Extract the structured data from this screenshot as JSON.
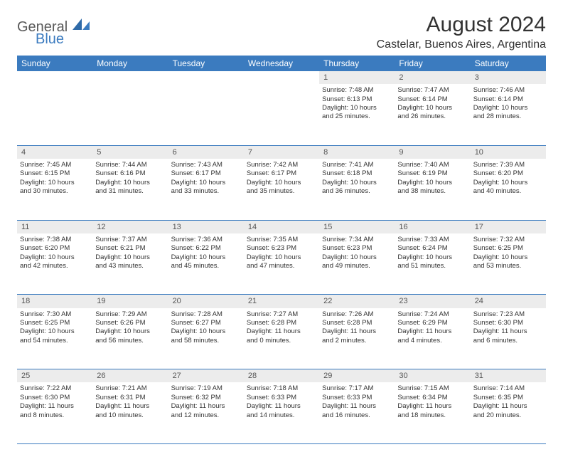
{
  "logo": {
    "general": "General",
    "blue": "Blue"
  },
  "title": "August 2024",
  "location": "Castelar, Buenos Aires, Argentina",
  "colors": {
    "brand": "#3b7bbf",
    "daynum_bg": "#ececec",
    "text": "#333333"
  },
  "weekdays": [
    "Sunday",
    "Monday",
    "Tuesday",
    "Wednesday",
    "Thursday",
    "Friday",
    "Saturday"
  ],
  "weeks": [
    {
      "nums": [
        "",
        "",
        "",
        "",
        "1",
        "2",
        "3"
      ],
      "cells": [
        null,
        null,
        null,
        null,
        {
          "sunrise": "Sunrise: 7:48 AM",
          "sunset": "Sunset: 6:13 PM",
          "day1": "Daylight: 10 hours",
          "day2": "and 25 minutes."
        },
        {
          "sunrise": "Sunrise: 7:47 AM",
          "sunset": "Sunset: 6:14 PM",
          "day1": "Daylight: 10 hours",
          "day2": "and 26 minutes."
        },
        {
          "sunrise": "Sunrise: 7:46 AM",
          "sunset": "Sunset: 6:14 PM",
          "day1": "Daylight: 10 hours",
          "day2": "and 28 minutes."
        }
      ]
    },
    {
      "nums": [
        "4",
        "5",
        "6",
        "7",
        "8",
        "9",
        "10"
      ],
      "cells": [
        {
          "sunrise": "Sunrise: 7:45 AM",
          "sunset": "Sunset: 6:15 PM",
          "day1": "Daylight: 10 hours",
          "day2": "and 30 minutes."
        },
        {
          "sunrise": "Sunrise: 7:44 AM",
          "sunset": "Sunset: 6:16 PM",
          "day1": "Daylight: 10 hours",
          "day2": "and 31 minutes."
        },
        {
          "sunrise": "Sunrise: 7:43 AM",
          "sunset": "Sunset: 6:17 PM",
          "day1": "Daylight: 10 hours",
          "day2": "and 33 minutes."
        },
        {
          "sunrise": "Sunrise: 7:42 AM",
          "sunset": "Sunset: 6:17 PM",
          "day1": "Daylight: 10 hours",
          "day2": "and 35 minutes."
        },
        {
          "sunrise": "Sunrise: 7:41 AM",
          "sunset": "Sunset: 6:18 PM",
          "day1": "Daylight: 10 hours",
          "day2": "and 36 minutes."
        },
        {
          "sunrise": "Sunrise: 7:40 AM",
          "sunset": "Sunset: 6:19 PM",
          "day1": "Daylight: 10 hours",
          "day2": "and 38 minutes."
        },
        {
          "sunrise": "Sunrise: 7:39 AM",
          "sunset": "Sunset: 6:20 PM",
          "day1": "Daylight: 10 hours",
          "day2": "and 40 minutes."
        }
      ]
    },
    {
      "nums": [
        "11",
        "12",
        "13",
        "14",
        "15",
        "16",
        "17"
      ],
      "cells": [
        {
          "sunrise": "Sunrise: 7:38 AM",
          "sunset": "Sunset: 6:20 PM",
          "day1": "Daylight: 10 hours",
          "day2": "and 42 minutes."
        },
        {
          "sunrise": "Sunrise: 7:37 AM",
          "sunset": "Sunset: 6:21 PM",
          "day1": "Daylight: 10 hours",
          "day2": "and 43 minutes."
        },
        {
          "sunrise": "Sunrise: 7:36 AM",
          "sunset": "Sunset: 6:22 PM",
          "day1": "Daylight: 10 hours",
          "day2": "and 45 minutes."
        },
        {
          "sunrise": "Sunrise: 7:35 AM",
          "sunset": "Sunset: 6:23 PM",
          "day1": "Daylight: 10 hours",
          "day2": "and 47 minutes."
        },
        {
          "sunrise": "Sunrise: 7:34 AM",
          "sunset": "Sunset: 6:23 PM",
          "day1": "Daylight: 10 hours",
          "day2": "and 49 minutes."
        },
        {
          "sunrise": "Sunrise: 7:33 AM",
          "sunset": "Sunset: 6:24 PM",
          "day1": "Daylight: 10 hours",
          "day2": "and 51 minutes."
        },
        {
          "sunrise": "Sunrise: 7:32 AM",
          "sunset": "Sunset: 6:25 PM",
          "day1": "Daylight: 10 hours",
          "day2": "and 53 minutes."
        }
      ]
    },
    {
      "nums": [
        "18",
        "19",
        "20",
        "21",
        "22",
        "23",
        "24"
      ],
      "cells": [
        {
          "sunrise": "Sunrise: 7:30 AM",
          "sunset": "Sunset: 6:25 PM",
          "day1": "Daylight: 10 hours",
          "day2": "and 54 minutes."
        },
        {
          "sunrise": "Sunrise: 7:29 AM",
          "sunset": "Sunset: 6:26 PM",
          "day1": "Daylight: 10 hours",
          "day2": "and 56 minutes."
        },
        {
          "sunrise": "Sunrise: 7:28 AM",
          "sunset": "Sunset: 6:27 PM",
          "day1": "Daylight: 10 hours",
          "day2": "and 58 minutes."
        },
        {
          "sunrise": "Sunrise: 7:27 AM",
          "sunset": "Sunset: 6:28 PM",
          "day1": "Daylight: 11 hours",
          "day2": "and 0 minutes."
        },
        {
          "sunrise": "Sunrise: 7:26 AM",
          "sunset": "Sunset: 6:28 PM",
          "day1": "Daylight: 11 hours",
          "day2": "and 2 minutes."
        },
        {
          "sunrise": "Sunrise: 7:24 AM",
          "sunset": "Sunset: 6:29 PM",
          "day1": "Daylight: 11 hours",
          "day2": "and 4 minutes."
        },
        {
          "sunrise": "Sunrise: 7:23 AM",
          "sunset": "Sunset: 6:30 PM",
          "day1": "Daylight: 11 hours",
          "day2": "and 6 minutes."
        }
      ]
    },
    {
      "nums": [
        "25",
        "26",
        "27",
        "28",
        "29",
        "30",
        "31"
      ],
      "cells": [
        {
          "sunrise": "Sunrise: 7:22 AM",
          "sunset": "Sunset: 6:30 PM",
          "day1": "Daylight: 11 hours",
          "day2": "and 8 minutes."
        },
        {
          "sunrise": "Sunrise: 7:21 AM",
          "sunset": "Sunset: 6:31 PM",
          "day1": "Daylight: 11 hours",
          "day2": "and 10 minutes."
        },
        {
          "sunrise": "Sunrise: 7:19 AM",
          "sunset": "Sunset: 6:32 PM",
          "day1": "Daylight: 11 hours",
          "day2": "and 12 minutes."
        },
        {
          "sunrise": "Sunrise: 7:18 AM",
          "sunset": "Sunset: 6:33 PM",
          "day1": "Daylight: 11 hours",
          "day2": "and 14 minutes."
        },
        {
          "sunrise": "Sunrise: 7:17 AM",
          "sunset": "Sunset: 6:33 PM",
          "day1": "Daylight: 11 hours",
          "day2": "and 16 minutes."
        },
        {
          "sunrise": "Sunrise: 7:15 AM",
          "sunset": "Sunset: 6:34 PM",
          "day1": "Daylight: 11 hours",
          "day2": "and 18 minutes."
        },
        {
          "sunrise": "Sunrise: 7:14 AM",
          "sunset": "Sunset: 6:35 PM",
          "day1": "Daylight: 11 hours",
          "day2": "and 20 minutes."
        }
      ]
    }
  ]
}
